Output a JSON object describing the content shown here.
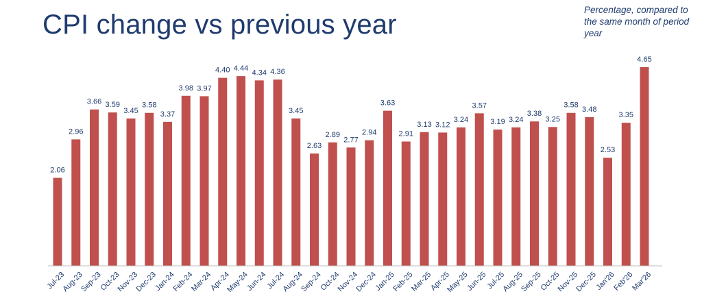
{
  "title": "CPI change vs previous year",
  "subtitle": "Percentage, compared to the same month of period year",
  "colors": {
    "bar": "#c0504d",
    "text": "#1f3b6e",
    "axis": "#bfbfbf"
  },
  "chart_data": {
    "type": "bar",
    "title": "CPI change vs previous year",
    "categories": [
      "Jul-23",
      "Aug-23",
      "Sep-23",
      "Oct-23",
      "Nov-23",
      "Dec-23",
      "Jan-24",
      "Feb-24",
      "Mar-24",
      "Apr-24",
      "May-24",
      "Jun-24",
      "Jul-24",
      "Aug-24",
      "Sep-24",
      "Oct-24",
      "Nov-24",
      "Dec-24",
      "Jan-25",
      "Feb-25",
      "Mar-25",
      "Apr-25",
      "May-25",
      "Jun-25",
      "Jul-25",
      "Aug-25",
      "Sep-25",
      "Oct-25",
      "Nov-25",
      "Dec-25",
      "Jan'26",
      "Feb'26",
      "Mar'26"
    ],
    "values": [
      2.06,
      2.96,
      3.66,
      3.59,
      3.45,
      3.58,
      3.37,
      3.98,
      3.97,
      4.4,
      4.44,
      4.34,
      4.36,
      3.45,
      2.63,
      2.89,
      2.77,
      2.94,
      3.63,
      2.91,
      3.13,
      3.12,
      3.24,
      3.57,
      3.19,
      3.24,
      3.38,
      3.25,
      3.58,
      3.48,
      2.53,
      3.35,
      4.65
    ],
    "value_labels": [
      "2.06",
      "2.96",
      "3.66",
      "3.59",
      "3.45",
      "3.58",
      "3.37",
      "3.98",
      "3.97",
      "4.40",
      "4.44",
      "4.34",
      "4.36",
      "3.45",
      "2.63",
      "2.89",
      "2.77",
      "2.94",
      "3.63",
      "2.91",
      "3.13",
      "3.12",
      "3.24",
      "3.57",
      "3.19",
      "3.24",
      "3.38",
      "3.25",
      "3.58",
      "3.48",
      "2.53",
      "3.35",
      "4.65"
    ],
    "xlabel": "",
    "ylabel": "",
    "ylim": [
      0,
      4.65
    ],
    "grid": false,
    "legend": "none"
  }
}
